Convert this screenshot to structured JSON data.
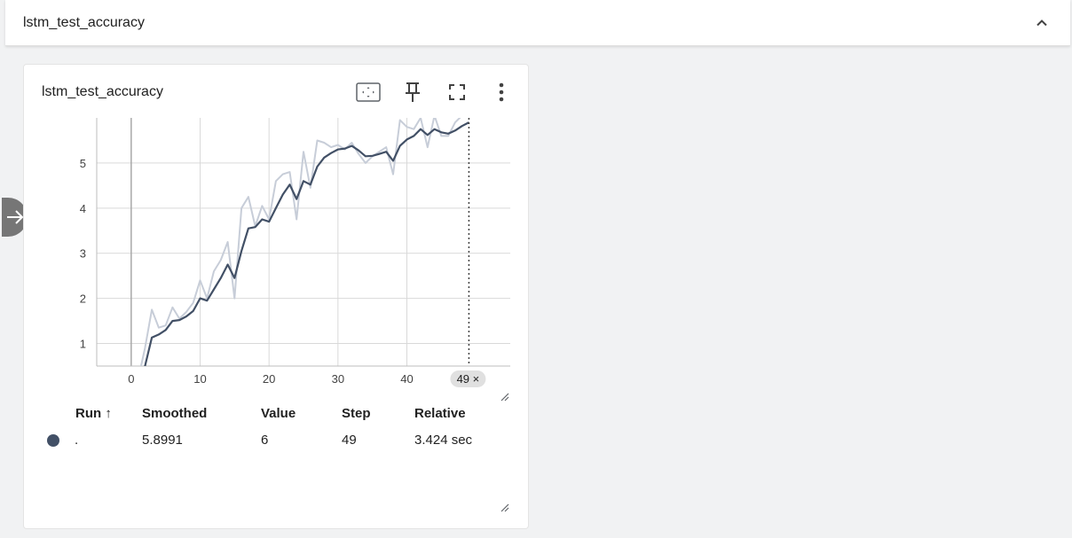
{
  "section": {
    "title": "lstm_test_accuracy"
  },
  "card": {
    "title": "lstm_test_accuracy",
    "toolbar": {
      "fit_icon": "fit-to-data-icon",
      "pin_icon": "pin-icon",
      "fullscreen_icon": "fullscreen-icon",
      "more_icon": "more-vert-icon"
    }
  },
  "step_marker": {
    "label": "49 ×"
  },
  "table": {
    "headers": {
      "run": "Run ↑",
      "smoothed": "Smoothed",
      "value": "Value",
      "step": "Step",
      "relative": "Relative"
    },
    "row": {
      "run": ".",
      "smoothed": "5.8991",
      "value": "6",
      "step": "49",
      "relative": "3.424 sec",
      "color": "#425066"
    }
  },
  "colors": {
    "smoothed_line": "#425066",
    "raw_line": "#c7cdd8",
    "grid": "#d9d9d9",
    "axis_zero": "#a8a8a8"
  },
  "chart_data": {
    "type": "line",
    "xlim": [
      -5,
      55
    ],
    "ylim": [
      0.5,
      6.0
    ],
    "x_ticks": [
      0,
      10,
      20,
      30,
      40
    ],
    "y_ticks": [
      1,
      2,
      3,
      4,
      5
    ],
    "grid": true,
    "cursor_step": 49,
    "series": [
      {
        "role": "raw",
        "x": [
          1,
          2,
          3,
          4,
          5,
          6,
          7,
          8,
          9,
          10,
          11,
          12,
          13,
          14,
          15,
          16,
          17,
          18,
          19,
          20,
          21,
          22,
          23,
          24,
          25,
          26,
          27,
          28,
          29,
          30,
          31,
          32,
          33,
          34,
          35,
          36,
          37,
          38,
          39,
          40,
          41,
          42,
          43,
          44,
          45,
          46,
          47,
          48,
          49
        ],
        "values": [
          0.2,
          0.9,
          1.75,
          1.35,
          1.4,
          1.8,
          1.55,
          1.7,
          1.9,
          2.4,
          2.0,
          2.6,
          2.85,
          3.25,
          2.0,
          4.0,
          4.25,
          3.6,
          4.05,
          3.75,
          4.6,
          4.75,
          4.8,
          3.75,
          5.25,
          4.45,
          5.5,
          5.45,
          5.35,
          5.4,
          5.3,
          5.45,
          5.2,
          5.0,
          5.15,
          5.25,
          5.35,
          4.75,
          5.95,
          5.8,
          5.75,
          6.0,
          5.35,
          6.05,
          5.6,
          5.6,
          5.9,
          6.05,
          6.1
        ]
      },
      {
        "role": "smoothed",
        "x": [
          1,
          2,
          3,
          4,
          5,
          6,
          7,
          8,
          9,
          10,
          11,
          12,
          13,
          14,
          15,
          16,
          17,
          18,
          19,
          20,
          21,
          22,
          23,
          24,
          25,
          26,
          27,
          28,
          29,
          30,
          31,
          32,
          33,
          34,
          35,
          36,
          37,
          38,
          39,
          40,
          41,
          42,
          43,
          44,
          45,
          46,
          47,
          48,
          49
        ],
        "values": [
          0.2,
          0.5,
          1.13,
          1.2,
          1.3,
          1.5,
          1.52,
          1.6,
          1.72,
          2.0,
          1.95,
          2.2,
          2.45,
          2.75,
          2.45,
          3.05,
          3.55,
          3.58,
          3.75,
          3.7,
          4.0,
          4.3,
          4.52,
          4.2,
          4.6,
          4.52,
          4.92,
          5.12,
          5.22,
          5.3,
          5.32,
          5.38,
          5.28,
          5.15,
          5.16,
          5.2,
          5.25,
          5.05,
          5.38,
          5.52,
          5.6,
          5.75,
          5.62,
          5.75,
          5.68,
          5.65,
          5.72,
          5.82,
          5.9
        ]
      }
    ]
  }
}
